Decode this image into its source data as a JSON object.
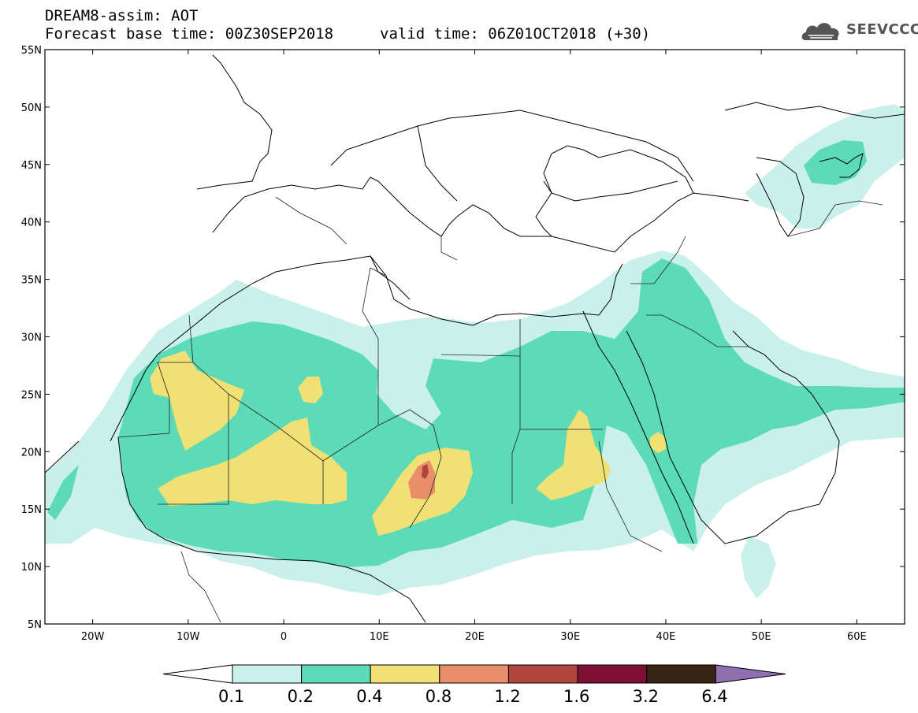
{
  "header": {
    "title": "DREAM8-assim: AOT",
    "base_time": "Forecast base time: 00Z30SEP2018",
    "valid_time": "valid time: 06Z01OCT2018 (+30)"
  },
  "logo": {
    "text": "SEEVCCC",
    "icon": "cloud-icon"
  },
  "map": {
    "lon_range": [
      -25,
      65
    ],
    "lat_range": [
      5,
      55
    ],
    "lon_ticks": [
      "20W",
      "10W",
      "0",
      "10E",
      "20E",
      "30E",
      "40E",
      "50E",
      "60E"
    ],
    "lat_ticks": [
      "55N",
      "50N",
      "45N",
      "40N",
      "35N",
      "30N",
      "25N",
      "20N",
      "15N",
      "10N",
      "5N"
    ]
  },
  "colorbar": {
    "levels": [
      "0.1",
      "0.2",
      "0.4",
      "0.8",
      "1.2",
      "1.6",
      "3.2",
      "6.4"
    ],
    "colors": [
      "#c9f0ea",
      "#5ddbb7",
      "#f1e074",
      "#e98e6a",
      "#b0453c",
      "#7e1035",
      "#3a2415",
      "#8f6fb0"
    ],
    "under_color": "#ffffff"
  },
  "field": {
    "colors": {
      "c1": "#c9f0ea",
      "c2": "#5ddbb7",
      "c3": "#f1e074",
      "c4": "#e98e6a",
      "c5": "#b0453c"
    }
  }
}
